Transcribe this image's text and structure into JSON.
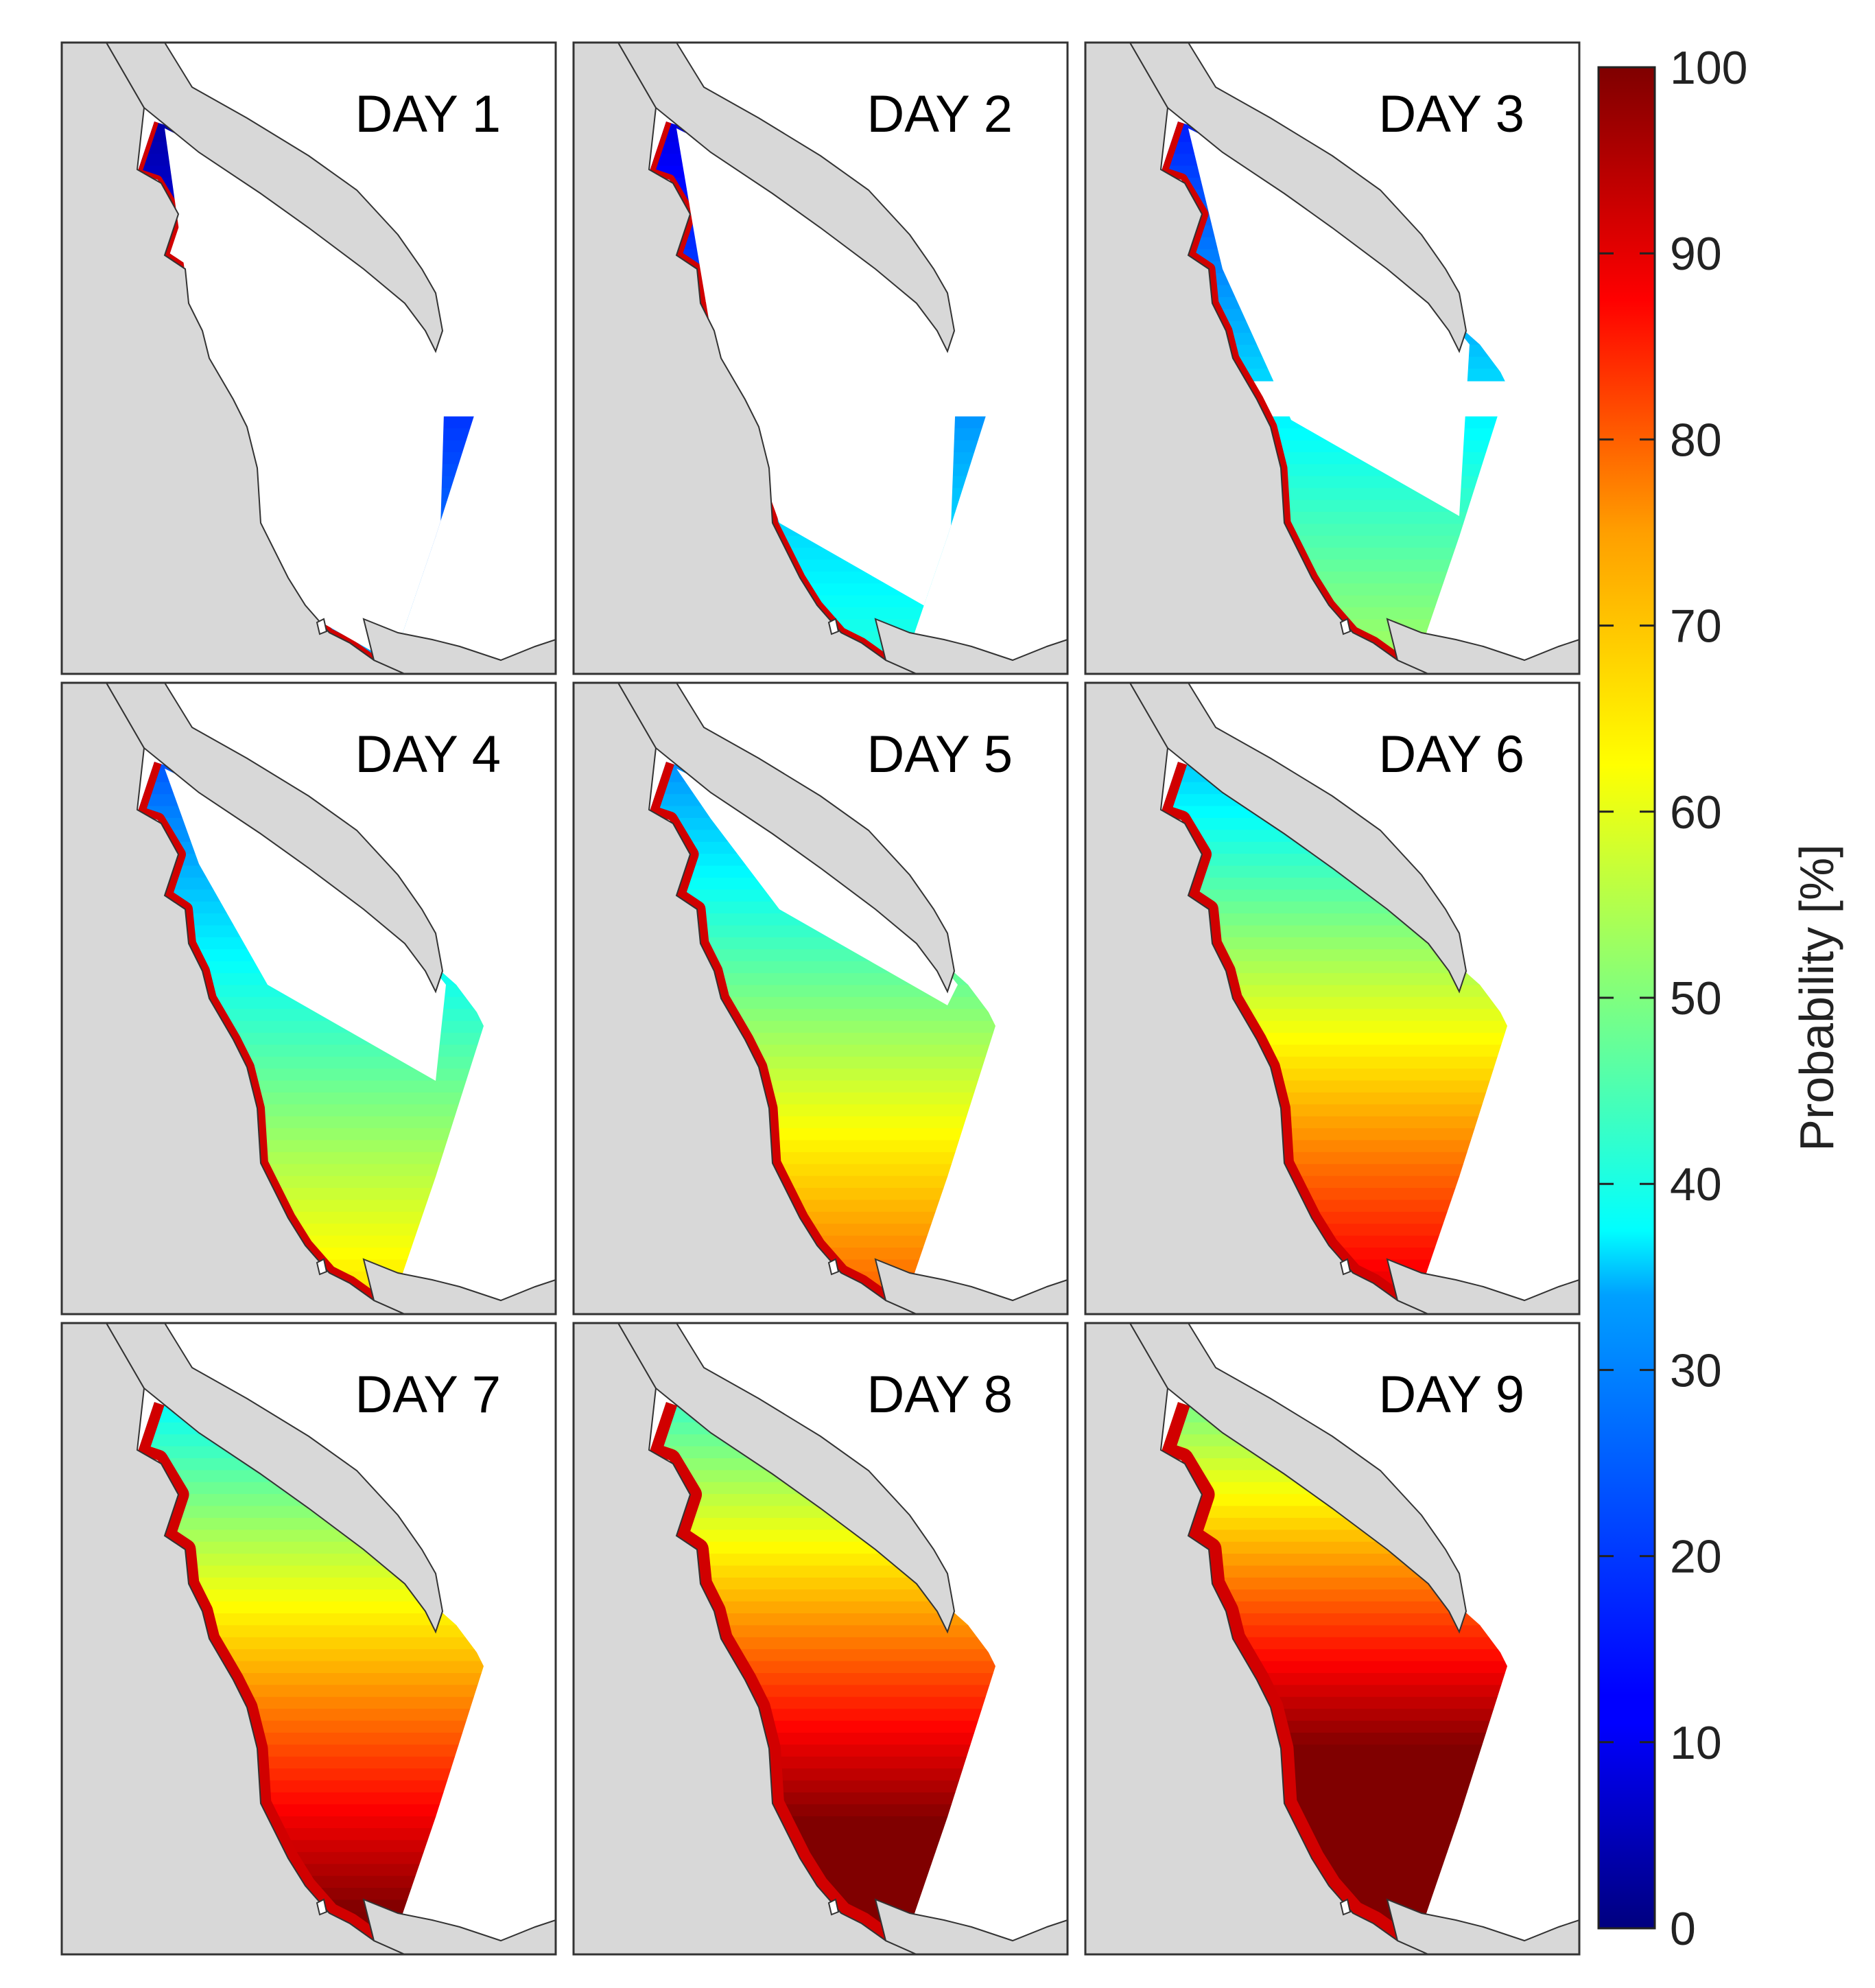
{
  "figure": {
    "panels": [
      {
        "title": "DAY 1",
        "day": 1
      },
      {
        "title": "DAY 2",
        "day": 2
      },
      {
        "title": "DAY 3",
        "day": 3
      },
      {
        "title": "DAY 4",
        "day": 4
      },
      {
        "title": "DAY 5",
        "day": 5
      },
      {
        "title": "DAY 6",
        "day": 6
      },
      {
        "title": "DAY 7",
        "day": 7
      },
      {
        "title": "DAY 8",
        "day": 8
      },
      {
        "title": "DAY 9",
        "day": 9
      }
    ],
    "colorbar": {
      "label": "Probability [%]",
      "min": 0,
      "max": 100,
      "ticks": [
        "0",
        "10",
        "20",
        "30",
        "40",
        "50",
        "60",
        "70",
        "80",
        "90",
        "100"
      ],
      "colormap": "jet"
    },
    "colors": {
      "land": "#d8d8d8",
      "coast_line": "#333333",
      "frame": "#333333",
      "unaffected_water": "#ffffff"
    }
  }
}
